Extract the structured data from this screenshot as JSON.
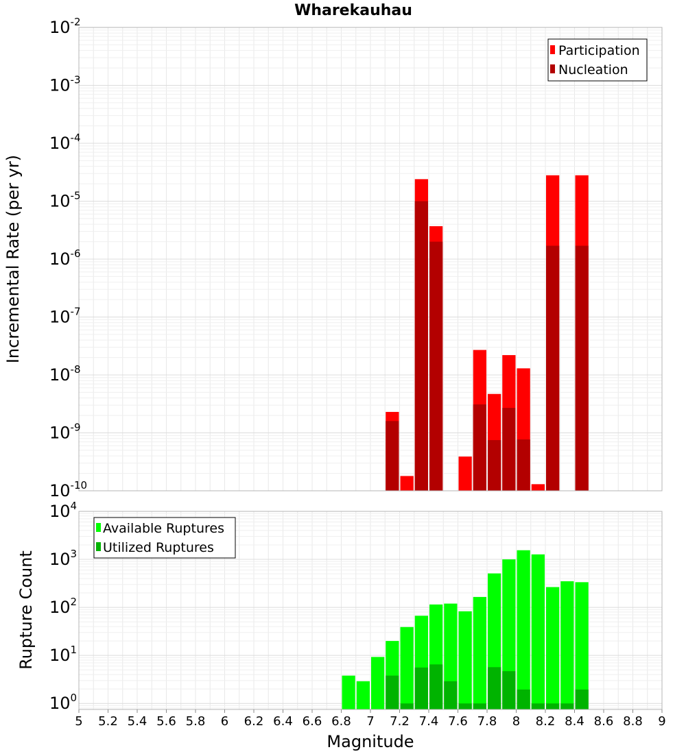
{
  "chart_data": [
    {
      "type": "bar",
      "title": "Wharekauhau",
      "xlabel": "",
      "ylabel": "Incremental Rate (per yr)",
      "yscale": "log",
      "ylim": [
        1e-10,
        0.01
      ],
      "xlim": [
        5,
        9
      ],
      "grid": true,
      "legend_position": "top-right",
      "overlay": true,
      "y_ticks": [
        {
          "base": "10",
          "exp": "-2"
        },
        {
          "base": "10",
          "exp": "-3"
        },
        {
          "base": "10",
          "exp": "-4"
        },
        {
          "base": "10",
          "exp": "-5"
        },
        {
          "base": "10",
          "exp": "-6"
        },
        {
          "base": "10",
          "exp": "-7"
        },
        {
          "base": "10",
          "exp": "-8"
        },
        {
          "base": "10",
          "exp": "-9"
        },
        {
          "base": "10",
          "exp": "-10"
        }
      ],
      "series": [
        {
          "name": "Participation",
          "color": "#ff0000",
          "points": [
            {
              "x": 7.15,
              "y": 2.3e-09
            },
            {
              "x": 7.25,
              "y": 1.8e-10
            },
            {
              "x": 7.35,
              "y": 2.4e-05
            },
            {
              "x": 7.45,
              "y": 3.7e-06
            },
            {
              "x": 7.65,
              "y": 3.9e-10
            },
            {
              "x": 7.75,
              "y": 2.7e-08
            },
            {
              "x": 7.85,
              "y": 4.7e-09
            },
            {
              "x": 7.95,
              "y": 2.2e-08
            },
            {
              "x": 8.05,
              "y": 1.3e-08
            },
            {
              "x": 8.15,
              "y": 1.3e-10
            },
            {
              "x": 8.25,
              "y": 2.8e-05
            },
            {
              "x": 8.45,
              "y": 2.8e-05
            }
          ]
        },
        {
          "name": "Nucleation",
          "color": "#b30000",
          "points": [
            {
              "x": 7.15,
              "y": 1.6e-09
            },
            {
              "x": 7.35,
              "y": 1e-05
            },
            {
              "x": 7.45,
              "y": 2e-06
            },
            {
              "x": 7.75,
              "y": 3.1e-09
            },
            {
              "x": 7.85,
              "y": 7.5e-10
            },
            {
              "x": 7.95,
              "y": 2.7e-09
            },
            {
              "x": 8.05,
              "y": 7.7e-10
            },
            {
              "x": 8.25,
              "y": 1.7e-06
            },
            {
              "x": 8.45,
              "y": 1.7e-06
            }
          ]
        }
      ]
    },
    {
      "type": "bar",
      "title": "",
      "xlabel": "Magnitude",
      "ylabel": "Rupture Count",
      "yscale": "log",
      "ylim": [
        0.75,
        10000.0
      ],
      "xlim": [
        5,
        9
      ],
      "grid": true,
      "legend_position": "top-left",
      "overlay": true,
      "y_ticks": [
        {
          "base": "10",
          "exp": "4"
        },
        {
          "base": "10",
          "exp": "3"
        },
        {
          "base": "10",
          "exp": "2"
        },
        {
          "base": "10",
          "exp": "1"
        },
        {
          "base": "10",
          "exp": "0"
        }
      ],
      "x_ticks": [
        "5",
        "5.2",
        "5.4",
        "5.6",
        "5.8",
        "6",
        "6.2",
        "6.4",
        "6.6",
        "6.8",
        "7",
        "7.2",
        "7.4",
        "7.6",
        "7.8",
        "8",
        "8.2",
        "8.4",
        "8.6",
        "8.8",
        "9"
      ],
      "series": [
        {
          "name": "Available Ruptures",
          "color": "#00ff00",
          "points": [
            {
              "x": 6.85,
              "y": 3.8
            },
            {
              "x": 6.95,
              "y": 2.9
            },
            {
              "x": 7.05,
              "y": 9.3
            },
            {
              "x": 7.15,
              "y": 20
            },
            {
              "x": 7.25,
              "y": 39
            },
            {
              "x": 7.35,
              "y": 67
            },
            {
              "x": 7.45,
              "y": 115
            },
            {
              "x": 7.55,
              "y": 120
            },
            {
              "x": 7.65,
              "y": 83
            },
            {
              "x": 7.75,
              "y": 165
            },
            {
              "x": 7.85,
              "y": 510
            },
            {
              "x": 7.95,
              "y": 1000
            },
            {
              "x": 8.05,
              "y": 1550
            },
            {
              "x": 8.15,
              "y": 1270
            },
            {
              "x": 8.25,
              "y": 265
            },
            {
              "x": 8.35,
              "y": 350
            },
            {
              "x": 8.45,
              "y": 335
            }
          ]
        },
        {
          "name": "Utilized Ruptures",
          "color": "#00b300",
          "points": [
            {
              "x": 7.15,
              "y": 3.8
            },
            {
              "x": 7.25,
              "y": 1
            },
            {
              "x": 7.35,
              "y": 5.6
            },
            {
              "x": 7.45,
              "y": 6.5
            },
            {
              "x": 7.55,
              "y": 2.9
            },
            {
              "x": 7.65,
              "y": 1
            },
            {
              "x": 7.75,
              "y": 1
            },
            {
              "x": 7.85,
              "y": 5.7
            },
            {
              "x": 7.95,
              "y": 4.7
            },
            {
              "x": 8.05,
              "y": 1.95
            },
            {
              "x": 8.15,
              "y": 1
            },
            {
              "x": 8.25,
              "y": 1
            },
            {
              "x": 8.35,
              "y": 1
            },
            {
              "x": 8.45,
              "y": 1.95
            }
          ]
        }
      ]
    }
  ]
}
